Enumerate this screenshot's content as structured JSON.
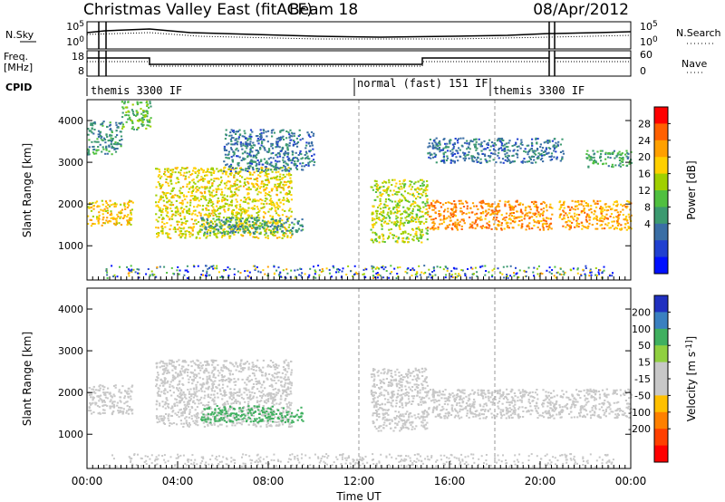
{
  "header": {
    "title": "Christmas Valley East (fitACF)",
    "beam": "Beam 18",
    "date": "08/Apr/2012"
  },
  "noise_panel": {
    "left_label": "N.Sky",
    "right_label": "N.Search",
    "left_ticks": [
      "10^5",
      "10^0"
    ],
    "right_ticks": [
      "10^5",
      "10^0"
    ]
  },
  "freq_panel": {
    "left_label_1": "Freq.",
    "left_label_2": "[MHz]",
    "right_label": "Nave",
    "left_ticks": [
      "18",
      "8"
    ],
    "right_ticks": [
      "60",
      "0"
    ]
  },
  "cpid": {
    "label": "CPID",
    "segments": [
      {
        "text": "themis 3300 IF",
        "start_hour": 0.0
      },
      {
        "text": "normal (fast) 151 IF",
        "start_hour": 12.0
      },
      {
        "text": "themis 3300 IF",
        "start_hour": 18.0
      }
    ]
  },
  "x_axis": {
    "label": "Time UT",
    "ticks": [
      "00:00",
      "04:00",
      "08:00",
      "12:00",
      "16:00",
      "20:00",
      "00:00"
    ]
  },
  "chart_data": [
    {
      "type": "heatmap",
      "name": "power",
      "ylabel": "Slant Range [km]",
      "xlabel": "Time UT",
      "xlim": [
        0,
        24
      ],
      "ylim": [
        180,
        4500
      ],
      "yticks": [
        1000,
        2000,
        3000,
        4000
      ],
      "colorbar": {
        "label": "Power [dB]",
        "ticks": [
          "28",
          "24",
          "20",
          "16",
          "12",
          "8",
          "4"
        ],
        "colors": [
          "#ff0000",
          "#ff6000",
          "#ffa000",
          "#ffd000",
          "#a0d000",
          "#50c040",
          "#3c9a70",
          "#3a6ea5",
          "#2040d0",
          "#0010ff"
        ]
      },
      "regions": [
        {
          "x": [
            0.0,
            2.0
          ],
          "y": [
            1500,
            2100
          ],
          "value": 22
        },
        {
          "x": [
            0.0,
            1.5
          ],
          "y": [
            3200,
            4000
          ],
          "value": 10
        },
        {
          "x": [
            1.5,
            2.8
          ],
          "y": [
            3800,
            4500
          ],
          "value": 14
        },
        {
          "x": [
            3.0,
            9.0
          ],
          "y": [
            1200,
            2900
          ],
          "value": 20
        },
        {
          "x": [
            5.0,
            9.5
          ],
          "y": [
            1300,
            1700
          ],
          "value": 10
        },
        {
          "x": [
            6.0,
            10.0
          ],
          "y": [
            2800,
            3800
          ],
          "value": 8
        },
        {
          "x": [
            12.5,
            15.0
          ],
          "y": [
            1100,
            2600
          ],
          "value": 18
        },
        {
          "x": [
            15.0,
            20.5
          ],
          "y": [
            1400,
            2100
          ],
          "value": 26
        },
        {
          "x": [
            20.8,
            24.0
          ],
          "y": [
            1400,
            2100
          ],
          "value": 24
        },
        {
          "x": [
            15.0,
            21.0
          ],
          "y": [
            3000,
            3600
          ],
          "value": 8
        },
        {
          "x": [
            22.0,
            24.0
          ],
          "y": [
            2900,
            3300
          ],
          "value": 12
        }
      ]
    },
    {
      "type": "heatmap",
      "name": "velocity",
      "ylabel": "Slant Range [km]",
      "xlabel": "Time UT",
      "xlim": [
        0,
        24
      ],
      "ylim": [
        180,
        4500
      ],
      "yticks": [
        1000,
        2000,
        3000,
        4000
      ],
      "colorbar": {
        "label": "Velocity [m s^-1]",
        "ticks": [
          "200",
          "100",
          "50",
          "15",
          "-15",
          "-50",
          "-100",
          "-200"
        ],
        "colors": [
          "#2030c0",
          "#3a80c0",
          "#40b060",
          "#90d040",
          "#c8c8c8",
          "#c8c8c8",
          "#ffc000",
          "#ff8000",
          "#ff4000",
          "#ff0000"
        ]
      },
      "regions": [
        {
          "x": [
            0.0,
            2.0
          ],
          "y": [
            1500,
            2200
          ],
          "value": 0
        },
        {
          "x": [
            3.0,
            9.0
          ],
          "y": [
            1200,
            2800
          ],
          "value": 0
        },
        {
          "x": [
            5.0,
            9.5
          ],
          "y": [
            1300,
            1700
          ],
          "value": 60
        },
        {
          "x": [
            12.5,
            15.0
          ],
          "y": [
            1100,
            2600
          ],
          "value": 0
        },
        {
          "x": [
            15.0,
            24.0
          ],
          "y": [
            1400,
            2100
          ],
          "value": 0
        }
      ]
    }
  ]
}
